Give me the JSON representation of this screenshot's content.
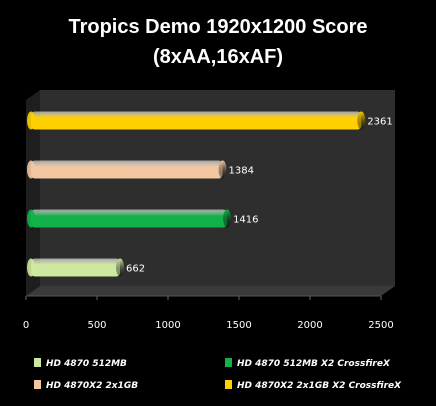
{
  "chart_data": {
    "type": "bar",
    "orientation": "horizontal",
    "title_lines": [
      "Tropics Demo 1920x1200 Score",
      "(8xAA,16xAF)"
    ],
    "xlim": [
      0,
      2500
    ],
    "ticks": [
      0,
      500,
      1000,
      1500,
      2000,
      2500
    ],
    "tick_labels": [
      "0",
      "500",
      "1000",
      "1500",
      "2000",
      "2500"
    ],
    "series": [
      {
        "name": "HD 4870 512MB",
        "value": 662,
        "color": "#cfe8a0"
      },
      {
        "name": "HD 4870X2 2x1GB",
        "value": 1384,
        "color": "#f3c7a1"
      },
      {
        "name": "HD 4870 512MB X2 CrossfireX",
        "value": 1416,
        "color": "#12b24a"
      },
      {
        "name": "HD 4870X2 2x1GB X2 CrossfireX",
        "value": 2361,
        "color": "#ffd000"
      }
    ],
    "bar_order_bottom_to_top": [
      0,
      2,
      1,
      3
    ],
    "grid": false,
    "legend_position": "bottom"
  },
  "colors": {
    "background": "#000000",
    "floor": "#3a3a3a",
    "wall": "#2e2e2e",
    "text": "#ffffff"
  }
}
